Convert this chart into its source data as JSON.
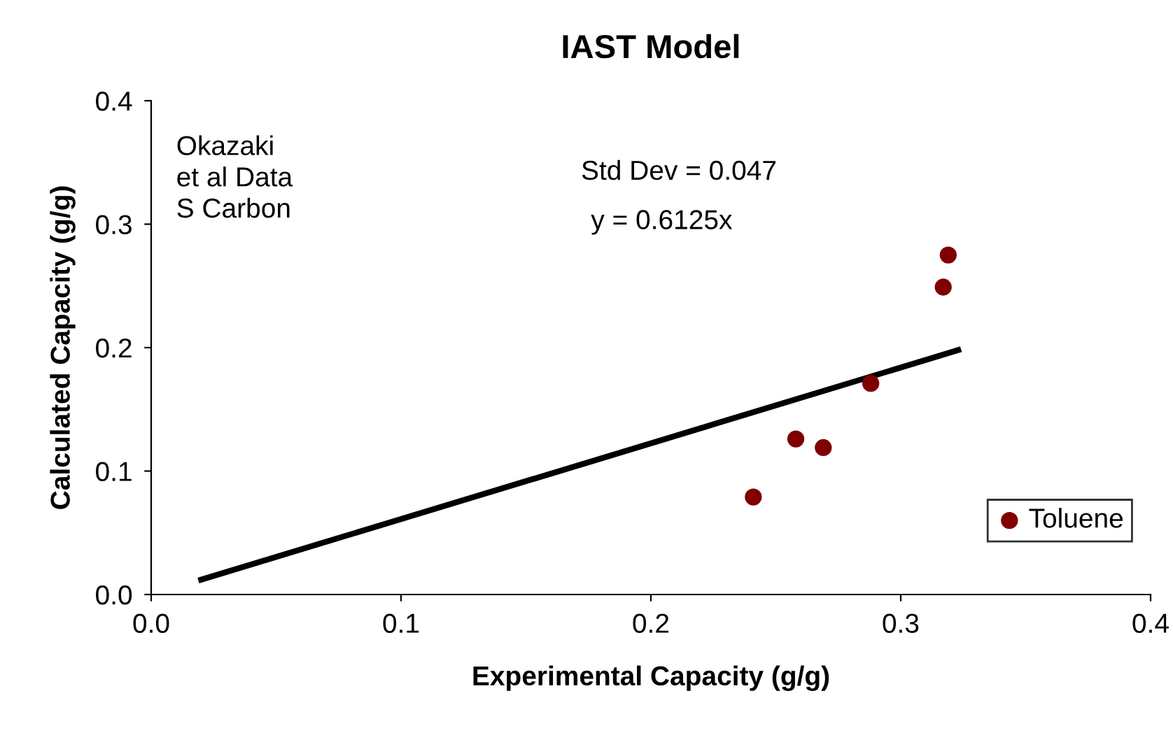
{
  "chart_data": {
    "type": "scatter",
    "title": "IAST Model",
    "xlabel": "Experimental Capacity (g/g)",
    "ylabel": "Calculated Capacity (g/g)",
    "series": [
      {
        "name": "Toluene",
        "color": "#800000",
        "x": [
          0.241,
          0.258,
          0.269,
          0.288,
          0.317,
          0.319
        ],
        "values": [
          0.079,
          0.126,
          0.119,
          0.171,
          0.249,
          0.275
        ],
        "marker": "circle"
      },
      {
        "type": "line",
        "color": "#000000",
        "x": [
          0.02,
          0.323
        ],
        "values": [
          0.012,
          0.198
        ],
        "marker": "none",
        "line_style": "solid"
      }
    ],
    "annotations": [
      "Okazaki\net al Data\nS Carbon",
      "Std Dev = 0.047",
      "y = 0.6125x"
    ],
    "xlim": [
      0.0,
      0.4
    ],
    "ylim": [
      0.0,
      0.4
    ],
    "xticks": [
      {
        "value": 0.0,
        "label": "0.0"
      },
      0.1,
      0.2,
      0.3,
      0.4
    ],
    "yticks": [
      {
        "value": 0.0,
        "label": "0.0"
      },
      0.1,
      0.2,
      0.3,
      0.4
    ],
    "grid": false,
    "legend": "bottom right"
  }
}
